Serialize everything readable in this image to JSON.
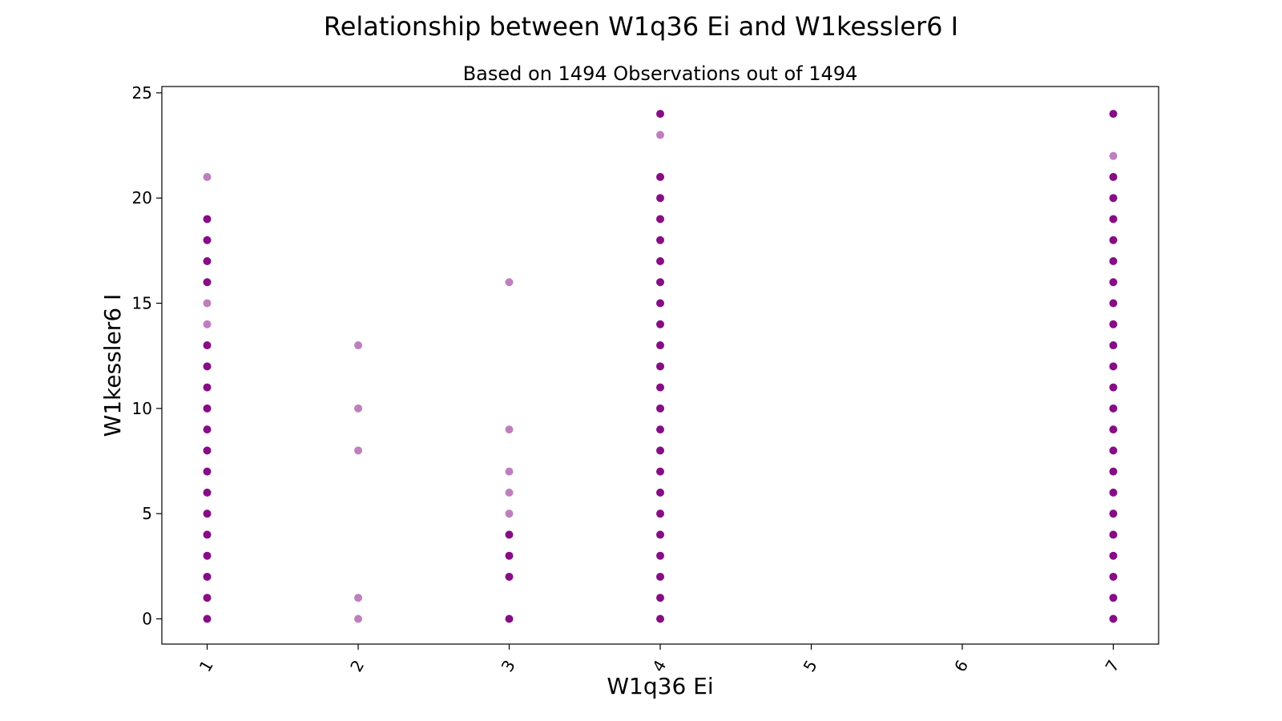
{
  "chart_data": {
    "type": "scatter",
    "title": "Relationship between W1q36 Ei and W1kessler6 I",
    "subtitle": "Based on 1494 Observations out of 1494",
    "xlabel": "W1q36 Ei",
    "ylabel": "W1kessler6 I",
    "xlim": [
      0.7,
      7.3
    ],
    "ylim": [
      -1.2,
      25.3
    ],
    "x_ticks": [
      "1",
      "2",
      "3",
      "4",
      "5",
      "6",
      "7"
    ],
    "y_ticks": [
      "0",
      "5",
      "10",
      "15",
      "20",
      "25"
    ],
    "grid": false,
    "legend": "none",
    "marker_color": "#800080",
    "series": [
      {
        "points": [
          {
            "x": 1,
            "y": 0,
            "dense": true
          },
          {
            "x": 1,
            "y": 1,
            "dense": true
          },
          {
            "x": 1,
            "y": 2,
            "dense": true
          },
          {
            "x": 1,
            "y": 3,
            "dense": true
          },
          {
            "x": 1,
            "y": 4,
            "dense": true
          },
          {
            "x": 1,
            "y": 5,
            "dense": true
          },
          {
            "x": 1,
            "y": 6,
            "dense": true
          },
          {
            "x": 1,
            "y": 7,
            "dense": true
          },
          {
            "x": 1,
            "y": 8,
            "dense": true
          },
          {
            "x": 1,
            "y": 9,
            "dense": true
          },
          {
            "x": 1,
            "y": 10,
            "dense": true
          },
          {
            "x": 1,
            "y": 11,
            "dense": true
          },
          {
            "x": 1,
            "y": 12,
            "dense": true
          },
          {
            "x": 1,
            "y": 13,
            "dense": true
          },
          {
            "x": 1,
            "y": 14,
            "dense": false
          },
          {
            "x": 1,
            "y": 15,
            "dense": false
          },
          {
            "x": 1,
            "y": 16,
            "dense": true
          },
          {
            "x": 1,
            "y": 17,
            "dense": true
          },
          {
            "x": 1,
            "y": 18,
            "dense": true
          },
          {
            "x": 1,
            "y": 19,
            "dense": true
          },
          {
            "x": 1,
            "y": 21,
            "dense": false
          },
          {
            "x": 2,
            "y": 0,
            "dense": false
          },
          {
            "x": 2,
            "y": 1,
            "dense": false
          },
          {
            "x": 2,
            "y": 8,
            "dense": false
          },
          {
            "x": 2,
            "y": 10,
            "dense": false
          },
          {
            "x": 2,
            "y": 13,
            "dense": false
          },
          {
            "x": 3,
            "y": 0,
            "dense": true
          },
          {
            "x": 3,
            "y": 2,
            "dense": true
          },
          {
            "x": 3,
            "y": 3,
            "dense": true
          },
          {
            "x": 3,
            "y": 4,
            "dense": true
          },
          {
            "x": 3,
            "y": 5,
            "dense": false
          },
          {
            "x": 3,
            "y": 6,
            "dense": false
          },
          {
            "x": 3,
            "y": 7,
            "dense": false
          },
          {
            "x": 3,
            "y": 9,
            "dense": false
          },
          {
            "x": 3,
            "y": 16,
            "dense": false
          },
          {
            "x": 4,
            "y": 0,
            "dense": true
          },
          {
            "x": 4,
            "y": 1,
            "dense": true
          },
          {
            "x": 4,
            "y": 2,
            "dense": true
          },
          {
            "x": 4,
            "y": 3,
            "dense": true
          },
          {
            "x": 4,
            "y": 4,
            "dense": true
          },
          {
            "x": 4,
            "y": 5,
            "dense": true
          },
          {
            "x": 4,
            "y": 6,
            "dense": true
          },
          {
            "x": 4,
            "y": 7,
            "dense": true
          },
          {
            "x": 4,
            "y": 8,
            "dense": true
          },
          {
            "x": 4,
            "y": 9,
            "dense": true
          },
          {
            "x": 4,
            "y": 10,
            "dense": true
          },
          {
            "x": 4,
            "y": 11,
            "dense": true
          },
          {
            "x": 4,
            "y": 12,
            "dense": true
          },
          {
            "x": 4,
            "y": 13,
            "dense": true
          },
          {
            "x": 4,
            "y": 14,
            "dense": true
          },
          {
            "x": 4,
            "y": 15,
            "dense": true
          },
          {
            "x": 4,
            "y": 16,
            "dense": true
          },
          {
            "x": 4,
            "y": 17,
            "dense": true
          },
          {
            "x": 4,
            "y": 18,
            "dense": true
          },
          {
            "x": 4,
            "y": 19,
            "dense": true
          },
          {
            "x": 4,
            "y": 20,
            "dense": true
          },
          {
            "x": 4,
            "y": 21,
            "dense": true
          },
          {
            "x": 4,
            "y": 23,
            "dense": false
          },
          {
            "x": 4,
            "y": 24,
            "dense": true
          },
          {
            "x": 7,
            "y": 0,
            "dense": true
          },
          {
            "x": 7,
            "y": 1,
            "dense": true
          },
          {
            "x": 7,
            "y": 2,
            "dense": true
          },
          {
            "x": 7,
            "y": 3,
            "dense": true
          },
          {
            "x": 7,
            "y": 4,
            "dense": true
          },
          {
            "x": 7,
            "y": 5,
            "dense": true
          },
          {
            "x": 7,
            "y": 6,
            "dense": true
          },
          {
            "x": 7,
            "y": 7,
            "dense": true
          },
          {
            "x": 7,
            "y": 8,
            "dense": true
          },
          {
            "x": 7,
            "y": 9,
            "dense": true
          },
          {
            "x": 7,
            "y": 10,
            "dense": true
          },
          {
            "x": 7,
            "y": 11,
            "dense": true
          },
          {
            "x": 7,
            "y": 12,
            "dense": true
          },
          {
            "x": 7,
            "y": 13,
            "dense": true
          },
          {
            "x": 7,
            "y": 14,
            "dense": true
          },
          {
            "x": 7,
            "y": 15,
            "dense": true
          },
          {
            "x": 7,
            "y": 16,
            "dense": true
          },
          {
            "x": 7,
            "y": 17,
            "dense": true
          },
          {
            "x": 7,
            "y": 18,
            "dense": true
          },
          {
            "x": 7,
            "y": 19,
            "dense": true
          },
          {
            "x": 7,
            "y": 20,
            "dense": true
          },
          {
            "x": 7,
            "y": 21,
            "dense": true
          },
          {
            "x": 7,
            "y": 22,
            "dense": false
          },
          {
            "x": 7,
            "y": 24,
            "dense": true
          }
        ]
      }
    ]
  }
}
